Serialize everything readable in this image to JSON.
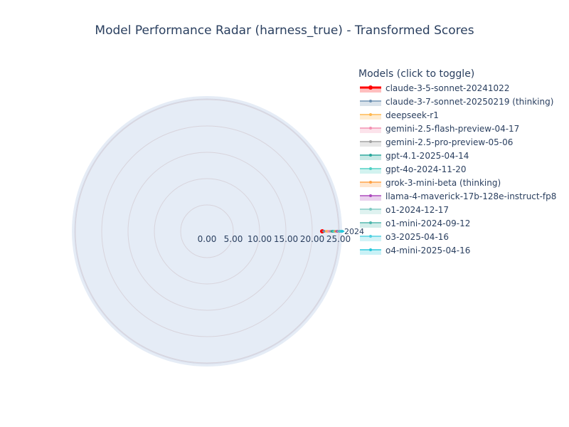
{
  "chart_data": {
    "type": "radar",
    "title": "Model Performance Radar (harness_true) - Transformed Scores",
    "categories": [
      "2024"
    ],
    "radial_ticks": [
      "0.00",
      "5.00",
      "10.00",
      "15.00",
      "20.00",
      "25.00"
    ],
    "radial_range": [
      0,
      25
    ],
    "grid": true,
    "legend_title": "Models (click to toggle)",
    "legend_position": "right",
    "series": [
      {
        "name": "claude-3-5-sonnet-20241022",
        "values": [
          21.9
        ],
        "color": "#ff0000"
      },
      {
        "name": "claude-3-7-sonnet-20250219 (thinking)",
        "values": [
          22.3
        ],
        "color": "#6b8fb0"
      },
      {
        "name": "deepseek-r1",
        "values": [
          22.8
        ],
        "color": "#ffb74d"
      },
      {
        "name": "gemini-2.5-flash-preview-04-17",
        "values": [
          23.2
        ],
        "color": "#f48fb1"
      },
      {
        "name": "gemini-2.5-pro-preview-05-06",
        "values": [
          23.6
        ],
        "color": "#a0a0a0"
      },
      {
        "name": "gpt-4.1-2025-04-14",
        "values": [
          23.9
        ],
        "color": "#26a69a"
      },
      {
        "name": "gpt-4o-2024-11-20",
        "values": [
          24.2
        ],
        "color": "#4dd0c4"
      },
      {
        "name": "grok-3-mini-beta (thinking)",
        "values": [
          24.5
        ],
        "color": "#ffa040"
      },
      {
        "name": "llama-4-maverick-17b-128e-instruct-fp8",
        "values": [
          24.8
        ],
        "color": "#ab47bc"
      },
      {
        "name": "o1-2024-12-17",
        "values": [
          25.1
        ],
        "color": "#80cbc4"
      },
      {
        "name": "o1-mini-2024-09-12",
        "values": [
          25.3
        ],
        "color": "#4db6ac"
      },
      {
        "name": "o3-2025-04-16",
        "values": [
          25.5
        ],
        "color": "#4dd0e1"
      },
      {
        "name": "o4-mini-2025-04-16",
        "values": [
          25.7
        ],
        "color": "#26c6da"
      }
    ]
  }
}
